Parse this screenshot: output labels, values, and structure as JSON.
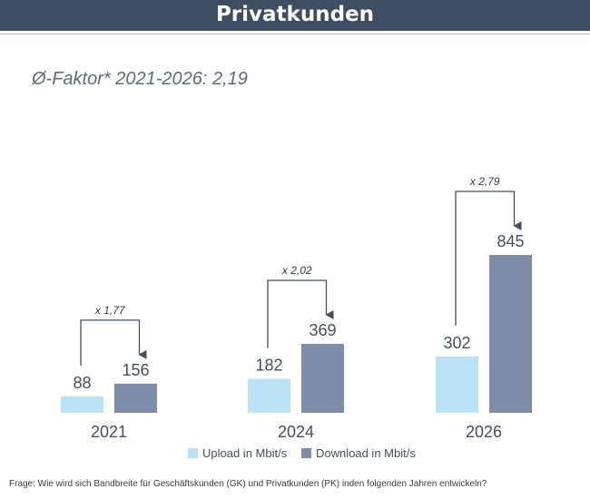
{
  "header": {
    "title": "Privatkunden"
  },
  "subtitle": "Ø-Faktor* 2021-2026: 2,19",
  "footer": {
    "question": "Frage: Wie wird sich Bandbreite für Geschäftskunden (GK) und Privatkunden (PK) inden folgenden Jahren entwickeln?"
  },
  "colors": {
    "upload": "#b9e3f4",
    "download": "#7f8ca9",
    "text": "#44505f",
    "arrow": "#44505f"
  },
  "chart_data": {
    "type": "bar",
    "categories": [
      "2021",
      "2024",
      "2026"
    ],
    "series": [
      {
        "name": "Upload in Mbit/s",
        "values": [
          88,
          182,
          302
        ]
      },
      {
        "name": "Download in Mbit/s",
        "values": [
          156,
          369,
          845
        ]
      }
    ],
    "annotations": [
      "x 1,77",
      "x 2,02",
      "x 2,79"
    ],
    "ylim": [
      0,
      845
    ],
    "legend": "bottom",
    "grid": false
  }
}
